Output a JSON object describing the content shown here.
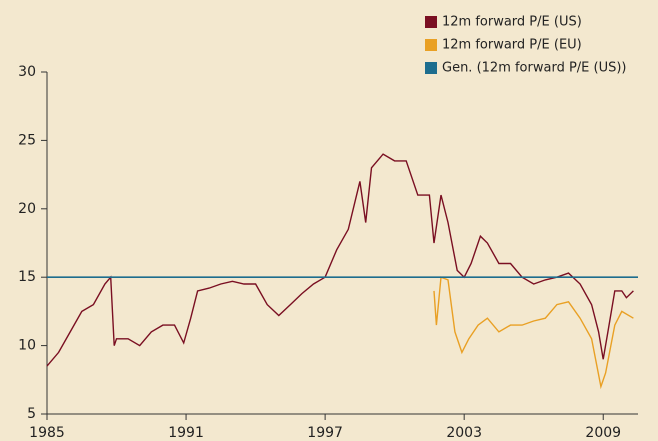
{
  "chart_data": {
    "type": "line",
    "xlim": [
      1985,
      2010.5
    ],
    "ylim": [
      5,
      30
    ],
    "xticks": [
      1985,
      1991,
      1997,
      2003,
      2009
    ],
    "yticks": [
      5,
      10,
      15,
      20,
      25,
      30
    ],
    "legend": "top-right",
    "series": [
      {
        "name": "12m forward P/E (US)",
        "color": "#7a0f22",
        "x": [
          1985.0,
          1985.5,
          1986.0,
          1986.5,
          1987.0,
          1987.5,
          1987.75,
          1987.9,
          1988.0,
          1988.5,
          1989.0,
          1989.5,
          1990.0,
          1990.5,
          1990.9,
          1991.2,
          1991.5,
          1992.0,
          1992.5,
          1993.0,
          1993.5,
          1994.0,
          1994.5,
          1995.0,
          1995.5,
          1996.0,
          1996.5,
          1997.0,
          1997.5,
          1998.0,
          1998.5,
          1998.75,
          1999.0,
          1999.5,
          2000.0,
          2000.5,
          2001.0,
          2001.5,
          2001.7,
          2002.0,
          2002.3,
          2002.7,
          2003.0,
          2003.3,
          2003.7,
          2004.0,
          2004.5,
          2005.0,
          2005.5,
          2006.0,
          2006.5,
          2007.0,
          2007.5,
          2008.0,
          2008.5,
          2008.8,
          2009.0,
          2009.2,
          2009.5,
          2009.8,
          2010.0,
          2010.3
        ],
        "values": [
          8.5,
          9.5,
          11,
          12.5,
          13,
          14.5,
          15,
          10,
          10.5,
          10.5,
          10,
          11,
          11.5,
          11.5,
          10.2,
          12,
          14,
          14.2,
          14.5,
          14.7,
          14.5,
          14.5,
          13,
          12.2,
          13,
          13.8,
          14.5,
          15,
          17,
          18.5,
          22,
          19,
          23,
          24,
          23.5,
          23.5,
          21,
          21,
          17.5,
          21,
          19,
          15.5,
          15,
          16,
          18,
          17.5,
          16,
          16,
          15,
          14.5,
          14.8,
          15,
          15.3,
          14.5,
          13,
          11,
          9,
          11,
          14,
          14,
          13.5,
          14
        ]
      },
      {
        "name": "12m forward P/E (EU)",
        "color": "#e9a024",
        "x": [
          2001.7,
          2001.8,
          2002.0,
          2002.3,
          2002.6,
          2002.9,
          2003.2,
          2003.6,
          2004.0,
          2004.5,
          2005.0,
          2005.5,
          2006.0,
          2006.5,
          2007.0,
          2007.5,
          2008.0,
          2008.5,
          2008.9,
          2009.1,
          2009.5,
          2009.8,
          2010.3
        ],
        "values": [
          14,
          11.5,
          15,
          14.8,
          11,
          9.5,
          10.5,
          11.5,
          12,
          11,
          11.5,
          11.5,
          11.8,
          12,
          13,
          13.2,
          12,
          10.5,
          7,
          8,
          11.5,
          12.5,
          12
        ]
      },
      {
        "name": "Gen. (12m forward P/E (US))",
        "color": "#1d6d8e",
        "x": [
          1985,
          2010.5
        ],
        "values": [
          15,
          15
        ]
      }
    ]
  }
}
